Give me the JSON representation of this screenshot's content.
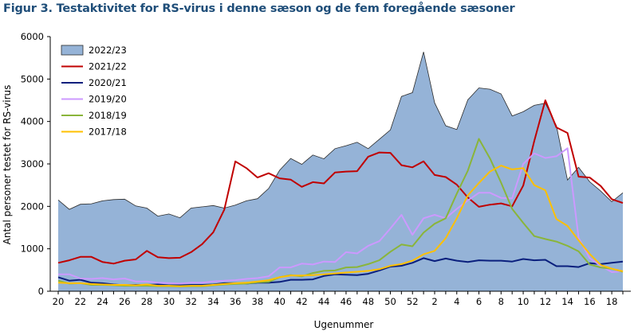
{
  "figure": {
    "title": "Figur 3. Testaktivitet  for RS-virus i denne sæson  og de fem foregående sæsoner"
  },
  "chart_data": {
    "type": "area",
    "xlabel": "Ugenummer",
    "ylabel": "Antal personer testet for RS-virus",
    "ylim": [
      0,
      6000
    ],
    "yticks": [
      0,
      1000,
      2000,
      3000,
      4000,
      5000,
      6000
    ],
    "ytick_labels": [
      "0",
      "1000",
      "2000",
      "3000",
      "4000",
      "5000",
      "6000"
    ],
    "grid": false,
    "legend_position": "top-left",
    "x": [
      20,
      21,
      22,
      23,
      24,
      25,
      26,
      27,
      28,
      29,
      30,
      31,
      32,
      33,
      34,
      35,
      36,
      37,
      38,
      39,
      40,
      41,
      42,
      43,
      44,
      45,
      46,
      47,
      48,
      49,
      50,
      51,
      52,
      1,
      2,
      3,
      4,
      5,
      6,
      7,
      8,
      9,
      10,
      11,
      12,
      13,
      14,
      15,
      16,
      17,
      18,
      19
    ],
    "xtick_labels": [
      "20",
      "22",
      "24",
      "26",
      "28",
      "30",
      "32",
      "34",
      "36",
      "38",
      "40",
      "42",
      "44",
      "46",
      "48",
      "50",
      "52",
      "2",
      "4",
      "6",
      "8",
      "10",
      "12",
      "14",
      "16",
      "18"
    ],
    "series": [
      {
        "name": "2022/23",
        "kind": "area",
        "color": "#95b3d7",
        "edge": "#2b2b2b",
        "values": [
          2150,
          1930,
          2050,
          2060,
          2130,
          2160,
          2170,
          2010,
          1960,
          1770,
          1820,
          1730,
          1960,
          1990,
          2020,
          1960,
          2030,
          2130,
          2180,
          2420,
          2850,
          3130,
          2990,
          3210,
          3120,
          3360,
          3430,
          3510,
          3360,
          3580,
          3800,
          4590,
          4680,
          5640,
          4440,
          3900,
          3810,
          4510,
          4790,
          4760,
          4650,
          4130,
          4230,
          4380,
          4430,
          3900,
          2620,
          2920,
          2580,
          2360,
          2110,
          2320
        ]
      },
      {
        "name": "2021/22",
        "kind": "line",
        "color": "#c00000",
        "values": [
          670,
          730,
          810,
          810,
          690,
          650,
          720,
          750,
          950,
          800,
          780,
          790,
          920,
          1110,
          1390,
          1920,
          3060,
          2900,
          2680,
          2780,
          2660,
          2630,
          2460,
          2570,
          2540,
          2800,
          2820,
          2830,
          3170,
          3270,
          3260,
          2970,
          2920,
          3060,
          2740,
          2690,
          2510,
          2210,
          1990,
          2040,
          2070,
          2000,
          2490,
          3540,
          4500,
          3860,
          3730,
          2700,
          2680,
          2480,
          2170,
          2080
        ]
      },
      {
        "name": "2020/21",
        "kind": "line",
        "color": "#0a1f7d",
        "values": [
          330,
          250,
          270,
          200,
          190,
          160,
          140,
          150,
          150,
          160,
          140,
          140,
          150,
          150,
          160,
          190,
          190,
          180,
          200,
          200,
          220,
          270,
          270,
          280,
          360,
          400,
          390,
          380,
          410,
          490,
          580,
          600,
          670,
          780,
          710,
          770,
          720,
          690,
          730,
          720,
          720,
          700,
          760,
          730,
          740,
          590,
          590,
          570,
          660,
          640,
          670,
          700
        ]
      },
      {
        "name": "2019/20",
        "kind": "line",
        "color": "#cc99ff",
        "values": [
          400,
          400,
          300,
          290,
          310,
          280,
          300,
          230,
          230,
          200,
          190,
          180,
          200,
          200,
          230,
          250,
          260,
          290,
          310,
          350,
          560,
          560,
          650,
          630,
          700,
          690,
          920,
          890,
          1070,
          1180,
          1480,
          1800,
          1330,
          1720,
          1800,
          1720,
          1940,
          2140,
          2320,
          2320,
          2200,
          2190,
          3000,
          3250,
          3140,
          3180,
          3370,
          1260,
          780,
          600,
          450,
          470
        ]
      },
      {
        "name": "2018/19",
        "kind": "line",
        "color": "#8ab53a",
        "values": [
          250,
          180,
          190,
          150,
          150,
          140,
          130,
          130,
          130,
          120,
          120,
          110,
          120,
          120,
          140,
          160,
          170,
          180,
          210,
          220,
          330,
          380,
          350,
          430,
          480,
          490,
          560,
          570,
          640,
          730,
          930,
          1100,
          1060,
          1380,
          1590,
          1720,
          2300,
          2840,
          3590,
          3130,
          2560,
          1940,
          1610,
          1300,
          1230,
          1170,
          1070,
          940,
          630,
          560,
          530,
          460
        ]
      },
      {
        "name": "2017/18",
        "kind": "line",
        "color": "#ffc000",
        "values": [
          200,
          190,
          190,
          170,
          160,
          150,
          150,
          140,
          160,
          130,
          130,
          120,
          130,
          130,
          150,
          170,
          190,
          200,
          230,
          260,
          330,
          370,
          370,
          380,
          400,
          420,
          440,
          460,
          480,
          520,
          600,
          640,
          720,
          870,
          950,
          1250,
          1720,
          2260,
          2550,
          2820,
          2960,
          2870,
          2900,
          2500,
          2380,
          1700,
          1540,
          1200,
          880,
          620,
          530,
          470
        ]
      }
    ]
  }
}
